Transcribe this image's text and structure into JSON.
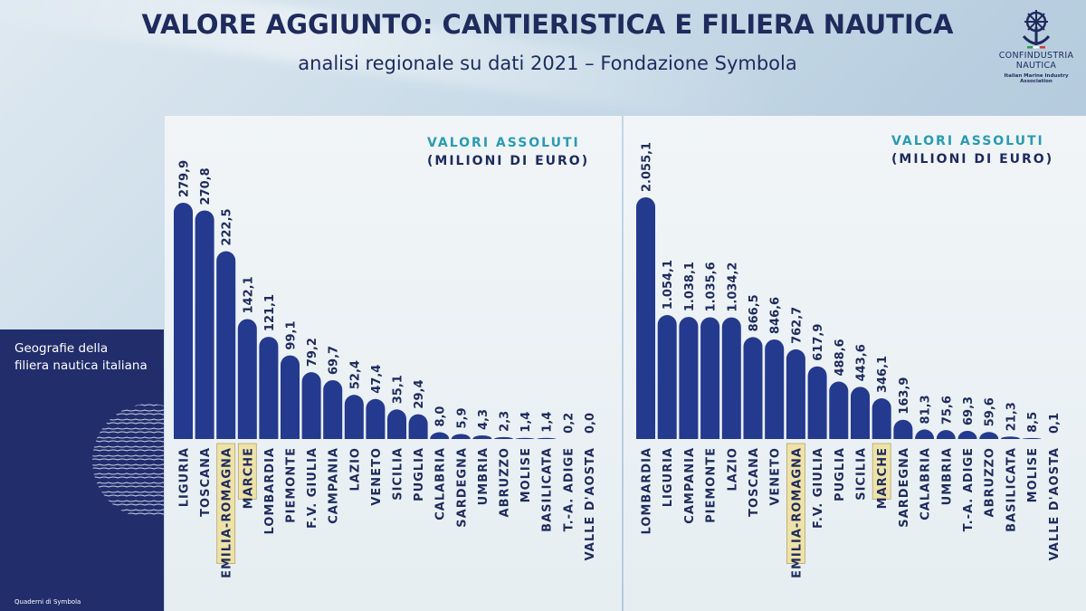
{
  "title": "VALORE AGGIUNTO: CANTIERISTICA E FILIERA NAUTICA",
  "subtitle": "analisi regionale su dati 2021 – Fondazione Symbola",
  "logo": {
    "line1": "CONFINDUSTRIA",
    "line2": "NAUTICA",
    "line3": "Italian Marine Industry Association",
    "icon": "anchor-wheel-icon"
  },
  "sidebar": {
    "title_line1": "Geografie della",
    "title_line2": "filiera nautica italiana",
    "footer": "Quaderni di Symbola"
  },
  "colors": {
    "bar": "#243a8e",
    "highlight": "#efe2a8",
    "accent": "#2a9bb0",
    "navy": "#1e2b5c"
  },
  "chart_data": [
    {
      "type": "bar",
      "title": "",
      "label_line1": "VALORI ASSOLUTI",
      "label_line2": "(MILIONI DI EURO)",
      "categories": [
        "LIGURIA",
        "TOSCANA",
        "EMILIA-ROMAGNA",
        "MARCHE",
        "LOMBARDIA",
        "PIEMONTE",
        "F.V. GIULIA",
        "CAMPANIA",
        "LAZIO",
        "VENETO",
        "SICILIA",
        "PUGLIA",
        "CALABRIA",
        "SARDEGNA",
        "UMBRIA",
        "ABRUZZO",
        "MOLISE",
        "BASILICATA",
        "T.-A. ADIGE",
        "VALLE D'AOSTA"
      ],
      "values": [
        279.9,
        270.8,
        222.5,
        142.1,
        121.1,
        99.1,
        79.2,
        69.7,
        52.4,
        47.4,
        35.1,
        29.4,
        8.0,
        5.9,
        4.3,
        2.3,
        1.4,
        1.4,
        0.2,
        0.0
      ],
      "value_labels": [
        "279,9",
        "270,8",
        "222,5",
        "142,1",
        "121,1",
        "99,1",
        "79,2",
        "69,7",
        "52,4",
        "47,4",
        "35,1",
        "29,4",
        "8,0",
        "5,9",
        "4,3",
        "2,3",
        "1,4",
        "1,4",
        "0,2",
        "0,0"
      ],
      "highlighted": [
        "EMILIA-ROMAGNA",
        "MARCHE"
      ],
      "ylim": [
        0,
        279.9
      ]
    },
    {
      "type": "bar",
      "title": "",
      "label_line1": "VALORI ASSOLUTI",
      "label_line2": "(MILIONI DI EURO)",
      "categories": [
        "LOMBARDIA",
        "LIGURIA",
        "CAMPANIA",
        "PIEMONTE",
        "LAZIO",
        "TOSCANA",
        "VENETO",
        "EMILIA-ROMAGNA",
        "F.V. GIULIA",
        "PUGLIA",
        "SICILIA",
        "MARCHE",
        "SARDEGNA",
        "CALABRIA",
        "UMBRIA",
        "T.-A. ADIGE",
        "ABRUZZO",
        "BASILICATA",
        "MOLISE",
        "VALLE D'AOSTA"
      ],
      "values": [
        2055.1,
        1054.1,
        1038.1,
        1035.6,
        1034.2,
        866.5,
        846.6,
        762.7,
        617.9,
        488.6,
        443.6,
        346.1,
        163.9,
        81.3,
        75.6,
        69.3,
        59.6,
        21.3,
        8.5,
        0.1
      ],
      "value_labels": [
        "2.055,1",
        "1.054,1",
        "1.038,1",
        "1.035,6",
        "1.034,2",
        "866,5",
        "846,6",
        "762,7",
        "617,9",
        "488,6",
        "443,6",
        "346,1",
        "163,9",
        "81,3",
        "75,6",
        "69,3",
        "59,6",
        "21,3",
        "8,5",
        "0,1"
      ],
      "highlighted": [
        "EMILIA-ROMAGNA",
        "MARCHE"
      ],
      "ylim": [
        0,
        2055.1
      ]
    }
  ]
}
